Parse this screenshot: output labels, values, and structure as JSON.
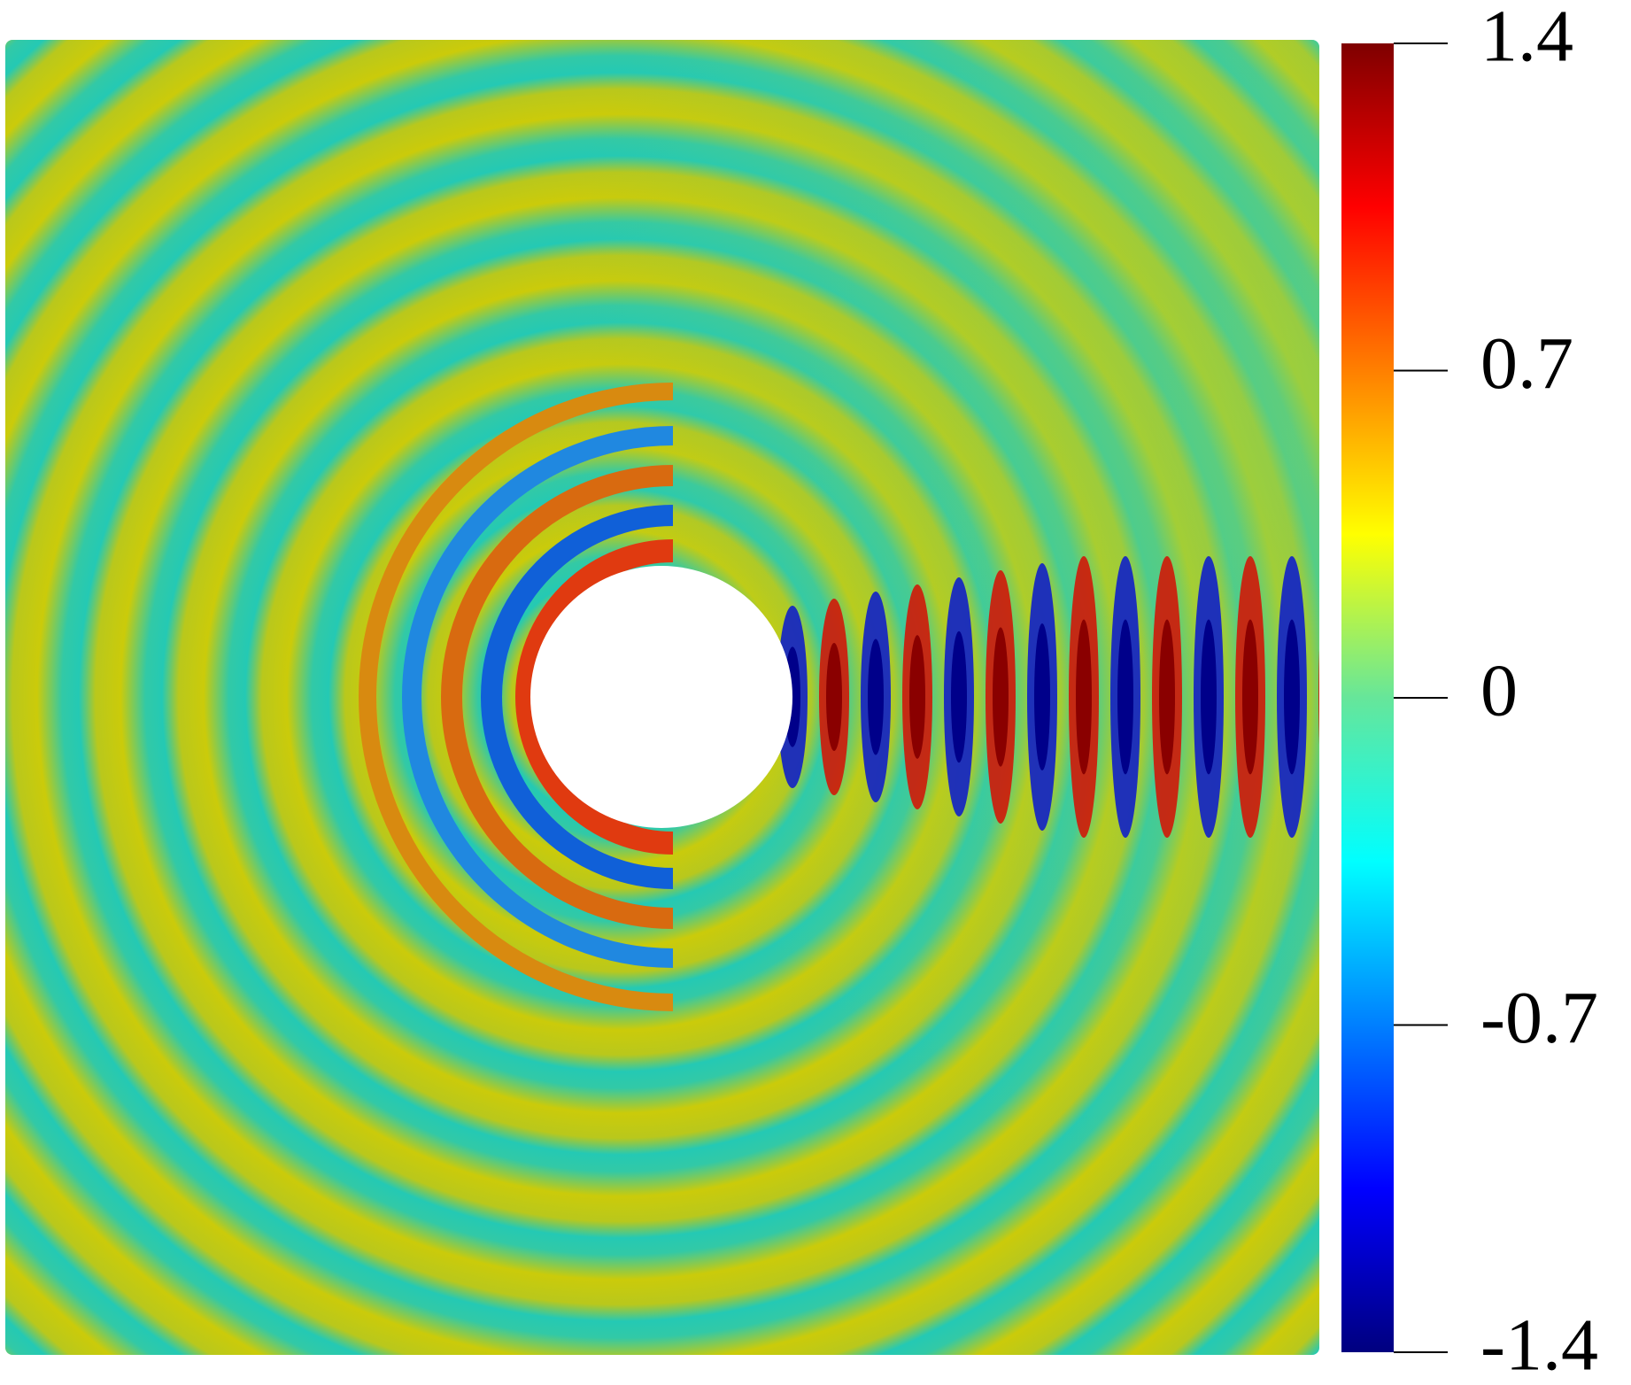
{
  "chart_data": {
    "type": "field",
    "colormap": "jet",
    "colorbar": {
      "lim": [
        -1.4,
        1.4
      ],
      "ticks": [
        -1.4,
        -0.7,
        0,
        0.7,
        1.4
      ]
    }
  }
}
